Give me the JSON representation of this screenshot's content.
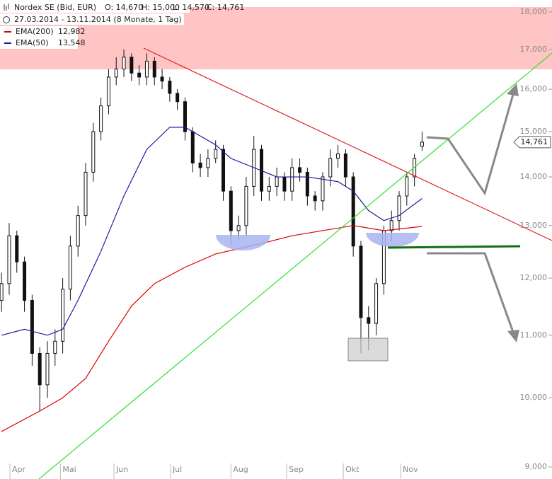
{
  "chart_data": {
    "type": "candlestick",
    "title": "Nordex SE (Bid, EUR)",
    "ohlc_labels": [
      "O: 14,670",
      "H: 15,000",
      "L: 14,570",
      "C: 14,761"
    ],
    "subtitle": "27.03.2014 - 13.11.2014 (8 Monate, 1 Tag)",
    "log_scale": true,
    "xlim": [
      -0.2,
      66.9
    ],
    "ylim": [
      9000,
      18330
    ],
    "xticks": [
      {
        "value": 1.1,
        "label": "Apr"
      },
      {
        "value": 7.7,
        "label": "Mai"
      },
      {
        "value": 14.7,
        "label": "Jun"
      },
      {
        "value": 22.1,
        "label": "Jul"
      },
      {
        "value": 30.0,
        "label": "Aug"
      },
      {
        "value": 37.3,
        "label": "Sep"
      },
      {
        "value": 44.7,
        "label": "Okt"
      },
      {
        "value": 52.2,
        "label": "Nov"
      }
    ],
    "yticks": [
      {
        "value": 9000,
        "label": "9,000"
      },
      {
        "value": 10000,
        "label": "10,000"
      },
      {
        "value": 11000,
        "label": "11,000"
      },
      {
        "value": 12000,
        "label": "12,000"
      },
      {
        "value": 13000,
        "label": "13,000"
      },
      {
        "value": 14000,
        "label": "14,000"
      },
      {
        "value": 15000,
        "label": "15,000"
      },
      {
        "value": 16000,
        "label": "16,000"
      },
      {
        "value": 17000,
        "label": "17,000"
      },
      {
        "value": 18000,
        "label": "18,000"
      }
    ],
    "last_price_label": "14,761",
    "candles": {
      "x": [
        0,
        1,
        2,
        3,
        4,
        5,
        6,
        7,
        8,
        9,
        10,
        11,
        12,
        13,
        14,
        15,
        16,
        17,
        18,
        19,
        20,
        21,
        22,
        23,
        24,
        25,
        26,
        27,
        28,
        29,
        30,
        31,
        32,
        33,
        34,
        35,
        36,
        37,
        38,
        39,
        40,
        41,
        42,
        43,
        44,
        45,
        46,
        47,
        48,
        49,
        50,
        51,
        52,
        53,
        54,
        55
      ],
      "open": [
        11600,
        11900,
        12800,
        12300,
        11600,
        10700,
        10200,
        10700,
        10900,
        11800,
        12600,
        13200,
        14100,
        15000,
        15600,
        16300,
        16500,
        16800,
        16400,
        16300,
        16700,
        16300,
        16200,
        15900,
        15700,
        15000,
        14300,
        14200,
        14400,
        14600,
        13700,
        12900,
        13000,
        13800,
        14600,
        13700,
        13800,
        14000,
        13700,
        14200,
        14100,
        13600,
        13500,
        14000,
        14400,
        14500,
        14000,
        12600,
        11300,
        11200,
        11900,
        12900,
        13100,
        13600,
        14000,
        14670
      ],
      "high": [
        12100,
        13050,
        12900,
        12400,
        11700,
        10800,
        10900,
        11100,
        12000,
        12800,
        13400,
        14300,
        15200,
        15800,
        16500,
        16800,
        17000,
        16900,
        16600,
        16900,
        16800,
        16500,
        16300,
        16000,
        15800,
        15100,
        14500,
        14600,
        14800,
        14700,
        13800,
        13200,
        14000,
        14900,
        14700,
        14000,
        14200,
        14100,
        14400,
        14400,
        14200,
        13700,
        14100,
        14600,
        14700,
        14600,
        14100,
        12700,
        11500,
        12000,
        13000,
        13300,
        13700,
        14100,
        14500,
        15000
      ],
      "low": [
        11400,
        11700,
        12100,
        11400,
        10500,
        9800,
        10000,
        10500,
        10700,
        11600,
        12400,
        13000,
        13900,
        14800,
        15400,
        16100,
        16300,
        16200,
        16100,
        16100,
        16100,
        16000,
        15700,
        15500,
        14800,
        14100,
        14000,
        14000,
        14300,
        13500,
        12600,
        12700,
        12800,
        13600,
        13500,
        13500,
        13600,
        13500,
        13500,
        13900,
        13400,
        13300,
        13300,
        13800,
        14200,
        13800,
        12400,
        10700,
        10750,
        11000,
        11700,
        12700,
        12900,
        13400,
        13800,
        14570
      ],
      "close": [
        11900,
        12800,
        12300,
        11600,
        10700,
        10200,
        10700,
        10900,
        11800,
        12600,
        13200,
        14100,
        15000,
        15600,
        16300,
        16500,
        16800,
        16400,
        16300,
        16700,
        16300,
        16200,
        15900,
        15700,
        15000,
        14300,
        14200,
        14400,
        14600,
        13700,
        12900,
        13000,
        13800,
        14600,
        13700,
        13800,
        14000,
        13700,
        14200,
        14100,
        13600,
        13500,
        14000,
        14400,
        14500,
        14000,
        12600,
        11300,
        11200,
        11900,
        12900,
        13100,
        13600,
        14000,
        14400,
        14761
      ]
    },
    "series": [
      {
        "name": "EMA(200)",
        "color": "#e00000",
        "last_label": "12,982",
        "x": [
          0,
          5,
          8,
          11,
          14,
          17,
          20,
          24,
          28,
          31,
          34,
          38,
          42,
          46,
          50,
          53,
          55
        ],
        "values": [
          9500,
          9800,
          10000,
          10300,
          10900,
          11500,
          11900,
          12200,
          12450,
          12550,
          12650,
          12800,
          12900,
          13000,
          12900,
          12950,
          12982
        ]
      },
      {
        "name": "EMA(50)",
        "color": "#1a1aa0",
        "last_label": "13,548",
        "x": [
          0,
          3,
          6,
          8,
          10,
          13,
          16,
          19,
          22,
          24,
          26,
          28,
          30,
          33,
          36,
          40,
          44,
          46,
          48,
          50,
          52,
          55
        ],
        "values": [
          11000,
          11100,
          11000,
          11100,
          11600,
          12500,
          13600,
          14600,
          15100,
          15100,
          14900,
          14700,
          14400,
          14200,
          14000,
          14000,
          13900,
          13700,
          13300,
          13100,
          13200,
          13548
        ]
      }
    ]
  }
}
